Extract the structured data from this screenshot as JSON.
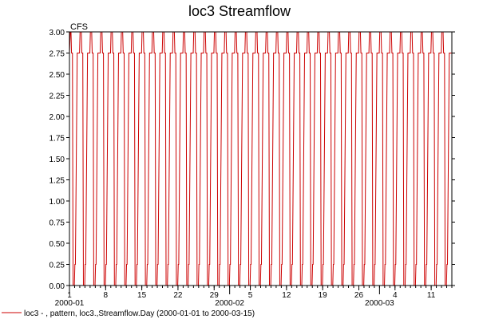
{
  "chart_data": {
    "type": "line",
    "title": "loc3 Streamflow",
    "ylabel": "CFS",
    "xlabel": "",
    "ylim": [
      0,
      3
    ],
    "y_ticks": [
      "0.00",
      "0.25",
      "0.50",
      "0.75",
      "1.00",
      "1.25",
      "1.50",
      "1.75",
      "2.00",
      "2.25",
      "2.50",
      "2.75",
      "3.00"
    ],
    "xlim": [
      "2000-01-01",
      "2000-03-15"
    ],
    "x_ticks": [
      {
        "date": "2000-01-01",
        "label": "1"
      },
      {
        "date": "2000-01-08",
        "label": "8"
      },
      {
        "date": "2000-01-15",
        "label": "15"
      },
      {
        "date": "2000-01-22",
        "label": "22"
      },
      {
        "date": "2000-01-29",
        "label": "29"
      },
      {
        "date": "2000-02-05",
        "label": "5"
      },
      {
        "date": "2000-02-12",
        "label": "12"
      },
      {
        "date": "2000-02-19",
        "label": "19"
      },
      {
        "date": "2000-02-26",
        "label": "26"
      },
      {
        "date": "2000-03-04",
        "label": "4"
      },
      {
        "date": "2000-03-11",
        "label": "11"
      }
    ],
    "x_major_labels": [
      {
        "date": "2000-01-01",
        "label": "2000-01"
      },
      {
        "date": "2000-02-01",
        "label": "2000-02"
      },
      {
        "date": "2000-03-01",
        "label": "2000-03"
      }
    ],
    "grid": false,
    "legend_position": "bottom-left",
    "series": [
      {
        "name": "loc3 - , pattern, loc3.,Streamflow.Day (2000-01-01 to 2000-03-15)",
        "color": "#cc0000",
        "pattern_days": 2,
        "y_min": 0.0,
        "y_max": 3.0,
        "plateau_low": 0.25,
        "plateau_high": 2.75,
        "start_value": 2.75,
        "end_value": 2.75
      }
    ]
  }
}
